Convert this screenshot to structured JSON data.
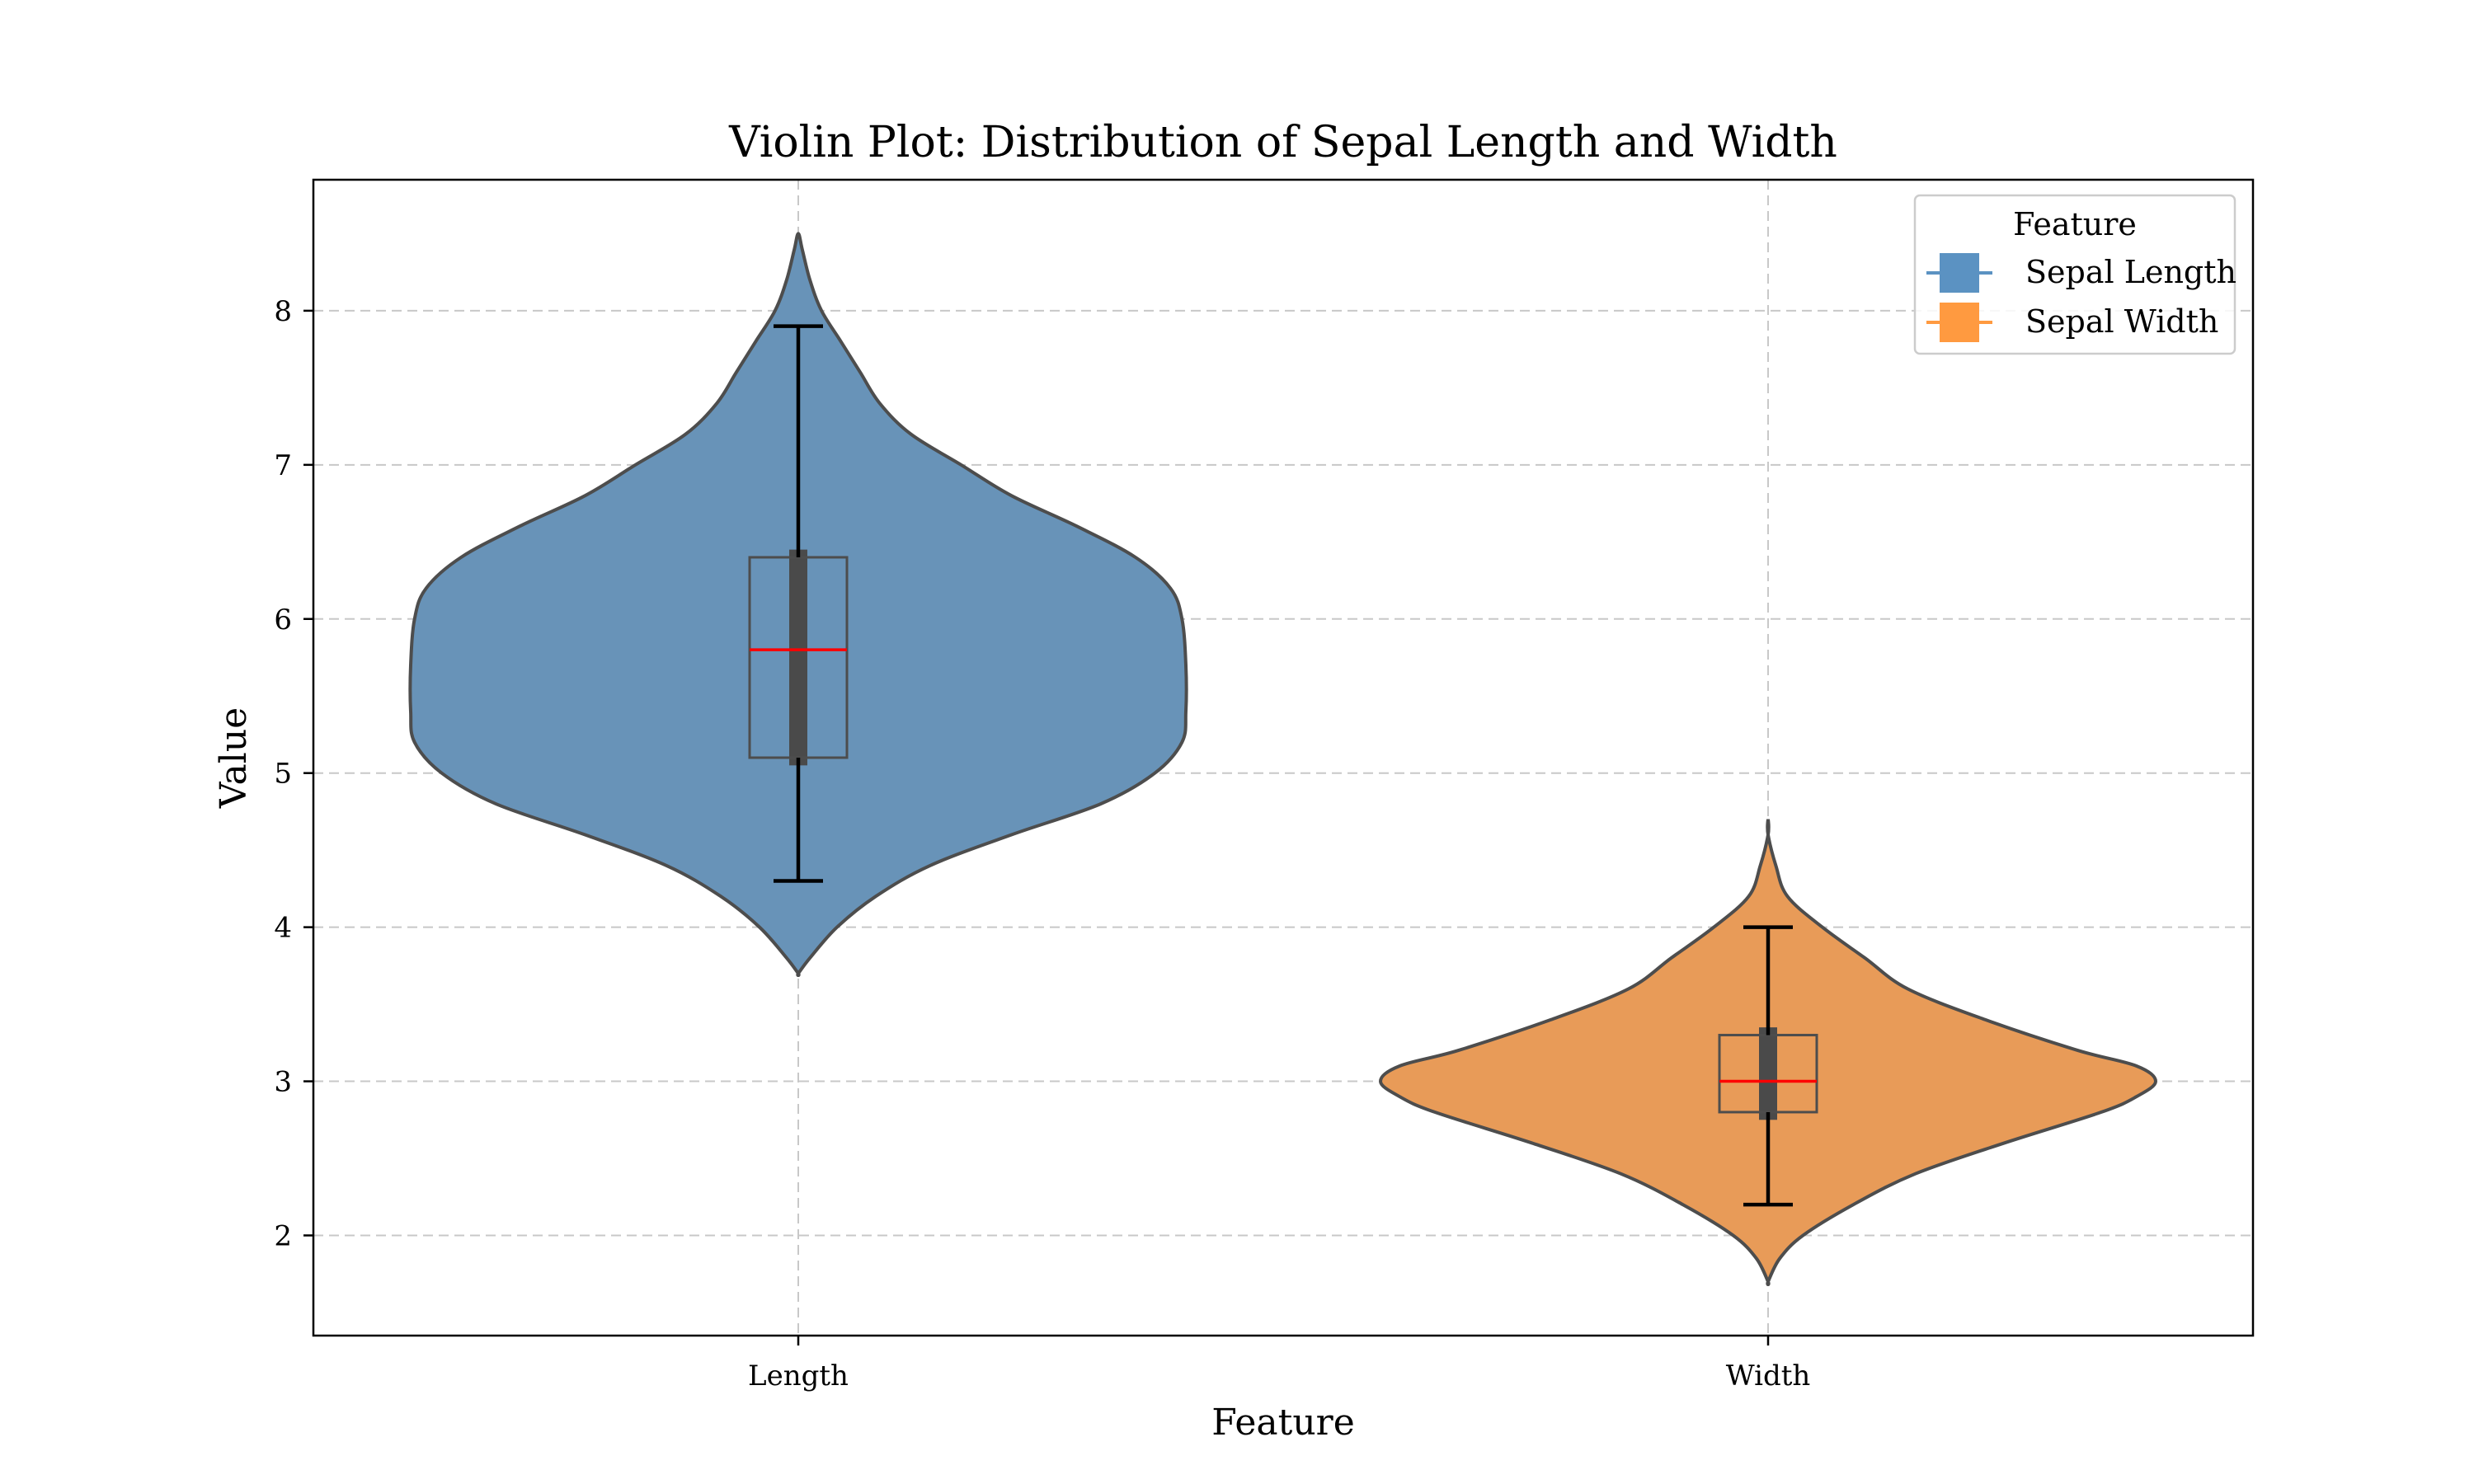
{
  "chart_data": {
    "type": "violin",
    "title": "Violin Plot: Distribution of Sepal Length and Width",
    "xlabel": "Feature",
    "ylabel": "Value",
    "categories": [
      "Length",
      "Width"
    ],
    "ylim": [
      1.35,
      8.85
    ],
    "yticks": [
      2,
      3,
      4,
      5,
      6,
      7,
      8
    ],
    "grid": true,
    "legend": {
      "title": "Feature",
      "position": "top-right",
      "entries": [
        {
          "name": "Sepal Length",
          "color": "#5b92c2"
        },
        {
          "name": "Sepal Width",
          "color": "#ff9a40"
        }
      ]
    },
    "series": [
      {
        "name": "Sepal Length",
        "category": "Length",
        "fill": "#6893b8",
        "min": 4.3,
        "q1": 5.1,
        "median": 5.8,
        "q3": 6.4,
        "max": 7.9,
        "kde_iqr": [
          5.05,
          6.45
        ],
        "density": [
          [
            3.7,
            0.0
          ],
          [
            3.8,
            0.03
          ],
          [
            4.0,
            0.1
          ],
          [
            4.2,
            0.2
          ],
          [
            4.4,
            0.34
          ],
          [
            4.6,
            0.55
          ],
          [
            4.8,
            0.78
          ],
          [
            5.0,
            0.92
          ],
          [
            5.2,
            0.99
          ],
          [
            5.4,
            1.0
          ],
          [
            5.7,
            1.0
          ],
          [
            6.0,
            0.99
          ],
          [
            6.2,
            0.96
          ],
          [
            6.4,
            0.87
          ],
          [
            6.6,
            0.72
          ],
          [
            6.8,
            0.55
          ],
          [
            7.0,
            0.42
          ],
          [
            7.2,
            0.29
          ],
          [
            7.4,
            0.21
          ],
          [
            7.6,
            0.16
          ],
          [
            7.8,
            0.11
          ],
          [
            8.0,
            0.06
          ],
          [
            8.2,
            0.03
          ],
          [
            8.4,
            0.01
          ],
          [
            8.5,
            0.0
          ]
        ]
      },
      {
        "name": "Sepal Width",
        "category": "Width",
        "fill": "#e89b58",
        "min": 2.2,
        "q1": 2.8,
        "median": 3.0,
        "q3": 3.3,
        "max": 4.0,
        "kde_iqr": [
          2.75,
          3.35
        ],
        "density": [
          [
            1.7,
            0.0
          ],
          [
            1.85,
            0.03
          ],
          [
            2.0,
            0.09
          ],
          [
            2.2,
            0.22
          ],
          [
            2.4,
            0.38
          ],
          [
            2.6,
            0.61
          ],
          [
            2.8,
            0.86
          ],
          [
            2.9,
            0.95
          ],
          [
            3.0,
            1.0
          ],
          [
            3.1,
            0.95
          ],
          [
            3.2,
            0.8
          ],
          [
            3.4,
            0.56
          ],
          [
            3.6,
            0.36
          ],
          [
            3.8,
            0.25
          ],
          [
            4.0,
            0.14
          ],
          [
            4.2,
            0.05
          ],
          [
            4.4,
            0.02
          ],
          [
            4.6,
            0.0
          ],
          [
            4.7,
            0.0
          ]
        ]
      }
    ]
  }
}
